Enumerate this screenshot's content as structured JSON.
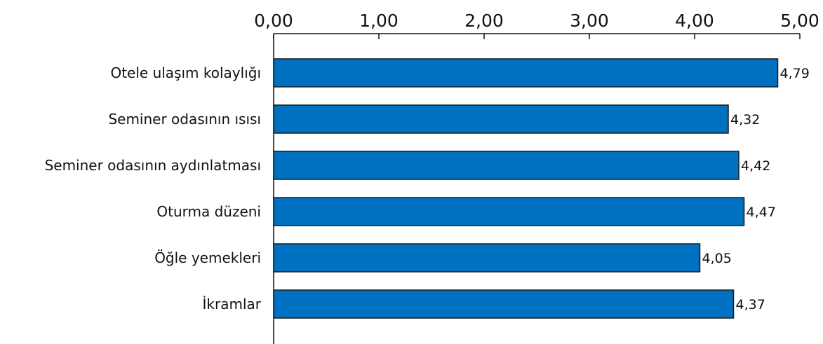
{
  "colors": {
    "bar": "#0070c0",
    "bar_stroke": "#1a1a1a",
    "axis": "#111111"
  },
  "chart_data": {
    "type": "bar",
    "orientation": "horizontal",
    "title": "",
    "xlabel": "",
    "ylabel": "",
    "xlim": [
      0,
      5
    ],
    "ticks": [
      "0,00",
      "1,00",
      "2,00",
      "3,00",
      "4,00",
      "5,00"
    ],
    "tick_values": [
      0,
      1,
      2,
      3,
      4,
      5
    ],
    "x_axis_position": "top",
    "grid": false,
    "legend": "none",
    "categories": [
      "Otele ulaşım kolaylığı",
      "Seminer odasının ısısı",
      "Seminer odasının aydınlatması",
      "Oturma düzeni",
      "Öğle yemekleri",
      "İkramlar"
    ],
    "values": [
      4.79,
      4.32,
      4.42,
      4.47,
      4.05,
      4.37
    ],
    "value_labels": [
      "4,79",
      "4,32",
      "4,42",
      "4,47",
      "4,05",
      "4,37"
    ]
  }
}
